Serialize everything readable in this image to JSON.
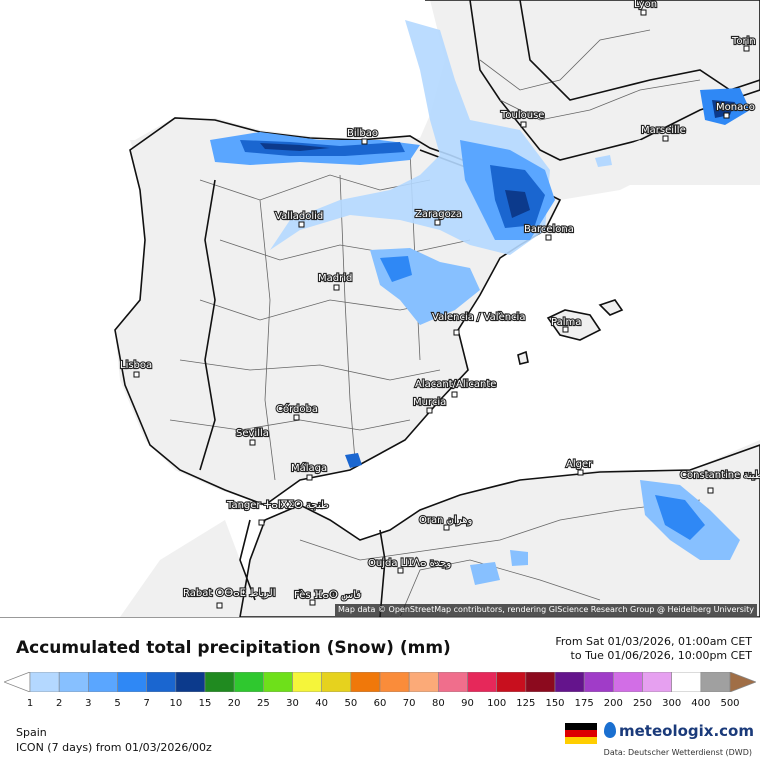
{
  "map": {
    "attribution": "Map data © OpenStreetMap contributors, rendering GIScience Research Group @ Heidelberg University",
    "cities": [
      {
        "name": "Lyon"
      },
      {
        "name": "Torin"
      },
      {
        "name": "Monaco"
      },
      {
        "name": "Toulouse"
      },
      {
        "name": "Marseille"
      },
      {
        "name": "Bilbao"
      },
      {
        "name": "Valladolid"
      },
      {
        "name": "Zaragoza"
      },
      {
        "name": "Barcelona"
      },
      {
        "name": "Madrid"
      },
      {
        "name": "Valencia / València"
      },
      {
        "name": "Palma"
      },
      {
        "name": "Lisboa"
      },
      {
        "name": "Alacant/Alicante"
      },
      {
        "name": "Murcia"
      },
      {
        "name": "Córdoba"
      },
      {
        "name": "Sevilla"
      },
      {
        "name": "Málaga"
      },
      {
        "name": "Alger"
      },
      {
        "name": "Constantine قسنطينة"
      },
      {
        "name": "Tanger ⵜⴰⵏⴳⵉⵔ طنجة"
      },
      {
        "name": "Oran وهران"
      },
      {
        "name": "Oujda ⵡⵊⴷⴰ وجدة"
      },
      {
        "name": "Rabat ⵔⴱⴰⵟ الرباط"
      },
      {
        "name": "Fès ⴼⴰⵙ فاس"
      }
    ]
  },
  "legend": {
    "title": "Accumulated total precipitation (Snow) (mm)",
    "from": "From Sat 01/03/2026, 01:00am CET",
    "to": "to Tue 01/06/2026, 10:00pm CET",
    "region": "Spain",
    "model": "ICON (7 days) from 01/03/2026/00z",
    "brand": "meteologix.com",
    "source": "Data: Deutscher Wetterdienst (DWD)",
    "ticks": [
      "1",
      "2",
      "3",
      "5",
      "7",
      "10",
      "15",
      "20",
      "25",
      "30",
      "40",
      "50",
      "60",
      "70",
      "80",
      "90",
      "100",
      "125",
      "150",
      "175",
      "200",
      "250",
      "300",
      "400",
      "500"
    ],
    "colors": [
      "#b4d8ff",
      "#87c0ff",
      "#5aa6ff",
      "#2f88f5",
      "#1a66d0",
      "#0c3a8c",
      "#208a20",
      "#2fc82f",
      "#6ee01a",
      "#f5f53a",
      "#e6d21e",
      "#f0780a",
      "#fa8c3a",
      "#fbaa78",
      "#f06e8c",
      "#e6285a",
      "#c80f1e",
      "#8c0a1e",
      "#64148c",
      "#a03cc8",
      "#d26ee6",
      "#e6a0f0",
      "#ffffff",
      "#a0a0a0",
      "#a06e46"
    ]
  }
}
